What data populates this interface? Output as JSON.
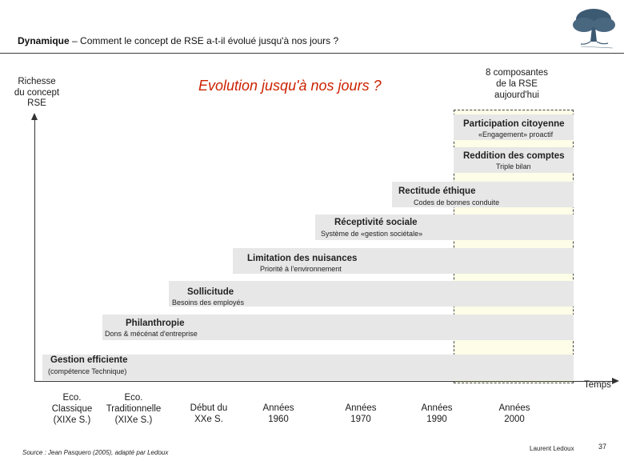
{
  "header": {
    "title_bold": "Dynamique",
    "title_rest": " – Comment le concept de RSE a-t-il évolué jusqu'à nos jours ?"
  },
  "logo": {
    "icon": "tree-icon"
  },
  "y_axis_label": [
    "Richesse",
    "du concept",
    "RSE"
  ],
  "main_title": "Evolution jusqu'à nos jours ?",
  "components_note": [
    "8 composantes",
    "de la RSE",
    "aujourd'hui"
  ],
  "x_axis_label": "Temps",
  "steps": [
    {
      "title": "Gestion efficiente",
      "subtitle": "(compétence Technique)"
    },
    {
      "title": "Philanthropie",
      "subtitle": "Dons & mécénat d'entreprise"
    },
    {
      "title": "Sollicitude",
      "subtitle": "Besoins des employés"
    },
    {
      "title": "Limitation des nuisances",
      "subtitle": "Priorité à l'environnement"
    },
    {
      "title": "Réceptivité sociale",
      "subtitle": "Système de «gestion sociétale»"
    },
    {
      "title": "Rectitude éthique",
      "subtitle": "Codes de bonnes conduite"
    },
    {
      "title": "Reddition des comptes",
      "subtitle": "Triple bilan"
    },
    {
      "title": "Participation citoyenne",
      "subtitle": "«Engagement» proactif"
    }
  ],
  "periods": [
    [
      "Eco.",
      "Classique",
      "(XIXe S.)"
    ],
    [
      "Eco.",
      "Traditionnelle",
      "(XIXe S.)"
    ],
    [
      "Début du",
      "XXe S."
    ],
    [
      "Années",
      "1960"
    ],
    [
      "Années",
      "1970"
    ],
    [
      "Années",
      "1990"
    ],
    [
      "Années",
      "2000"
    ]
  ],
  "footer": {
    "source": "Source : Jean Pasquero (2005), adapté par Ledoux",
    "author": "Laurent Ledoux",
    "page": "37"
  }
}
